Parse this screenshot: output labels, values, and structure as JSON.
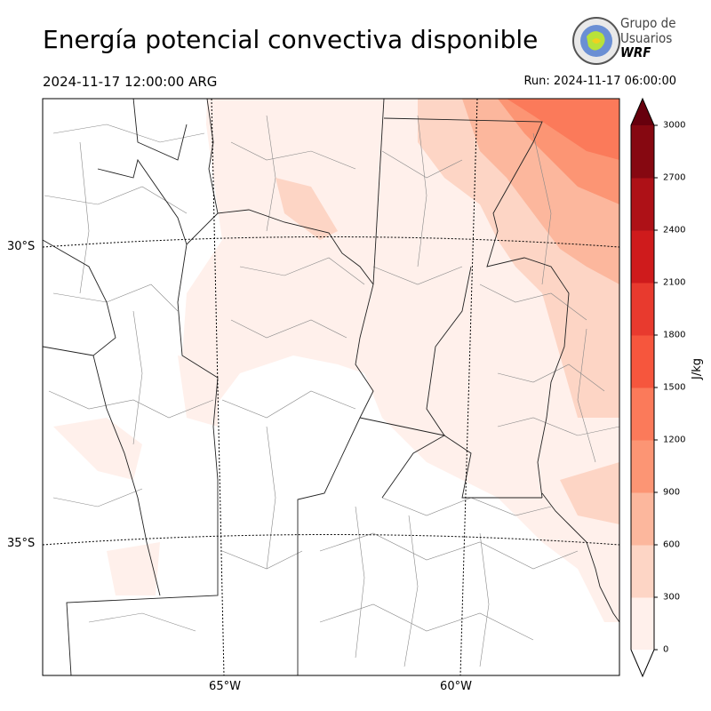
{
  "header": {
    "title": "Energía potencial convectiva disponible",
    "valid_time": "2024-11-17 12:00:00 ARG",
    "run_time": "Run: 2024-11-17 06:00:00"
  },
  "logo": {
    "line1": "Grupo de",
    "line2": "Usuarios",
    "line3": "WRF"
  },
  "axes": {
    "lat_labels": [
      "30°S",
      "35°S"
    ],
    "lon_labels": [
      "65°W",
      "60°W"
    ]
  },
  "colorbar": {
    "label": "J/kg",
    "ticks": [
      "0",
      "300",
      "600",
      "900",
      "1200",
      "1500",
      "1800",
      "2100",
      "2400",
      "2700",
      "3000"
    ],
    "colors": [
      "#fff0eb",
      "#fdd5c5",
      "#fcb79d",
      "#fc9574",
      "#fb7a5a",
      "#f6563d",
      "#e83a2e",
      "#cf1b1c",
      "#ae1117",
      "#860811"
    ],
    "under_color": "#ffffff",
    "over_color": "#67000d"
  }
}
